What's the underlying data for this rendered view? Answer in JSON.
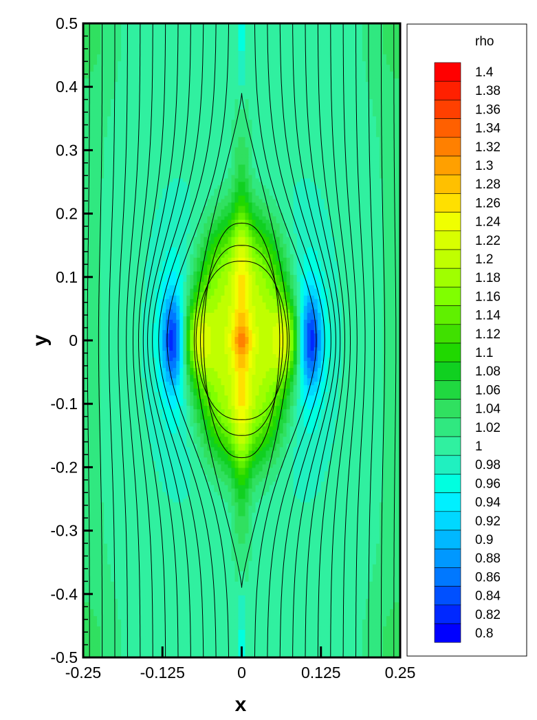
{
  "chart_data": {
    "type": "heatmap",
    "title": "",
    "xlabel": "x",
    "ylabel": "y",
    "xlim": [
      -0.25,
      0.25
    ],
    "ylim": [
      -0.5,
      0.5
    ],
    "x_ticks": [
      -0.25,
      -0.125,
      0,
      0.125,
      0.25
    ],
    "x_tick_labels": [
      "-0.25",
      "-0.125",
      "0",
      "0.125",
      "0.25"
    ],
    "y_ticks": [
      0.5,
      0.4,
      0.3,
      0.2,
      0.1,
      0,
      -0.1,
      -0.2,
      -0.3,
      -0.4,
      -0.5
    ],
    "y_tick_labels": [
      "0.5",
      "0.4",
      "0.3",
      "0.2",
      "0.1",
      "0",
      "-0.1",
      "-0.2",
      "-0.3",
      "-0.4",
      "-0.5"
    ],
    "colorbar": {
      "title": "rho",
      "levels": [
        "1.4",
        "1.38",
        "1.36",
        "1.34",
        "1.32",
        "1.3",
        "1.28",
        "1.26",
        "1.24",
        "1.22",
        "1.2",
        "1.18",
        "1.16",
        "1.14",
        "1.12",
        "1.1",
        "1.08",
        "1.06",
        "1.04",
        "1.02",
        "1",
        "0.98",
        "0.96",
        "0.94",
        "0.92",
        "0.9",
        "0.88",
        "0.86",
        "0.84",
        "0.82",
        "0.8"
      ],
      "colors": [
        "#ff0000",
        "#ff2000",
        "#ff4000",
        "#ff6000",
        "#ff8000",
        "#ffa000",
        "#ffc000",
        "#ffe000",
        "#f0ff00",
        "#d8ff00",
        "#c0ff00",
        "#a0ff00",
        "#80ff00",
        "#60f000",
        "#40e000",
        "#20d800",
        "#10d020",
        "#20d840",
        "#30e060",
        "#30e880",
        "#30f0a0",
        "#20f0c0",
        "#00ffe0",
        "#00f0ff",
        "#00d8ff",
        "#00b8ff",
        "#0098ff",
        "#0078ff",
        "#0050ff",
        "#0028ff",
        "#0000ff"
      ],
      "range": [
        0.8,
        1.4
      ]
    },
    "background_rho": 1.0,
    "features": {
      "compression_core_peak_rho": 1.32,
      "side_rarefaction_min_rho": 0.86,
      "streamlines": "vertical, deflected around a lens-shaped core between y = -0.4 and y = 0.4"
    },
    "grid": false,
    "legend_position": "right"
  }
}
